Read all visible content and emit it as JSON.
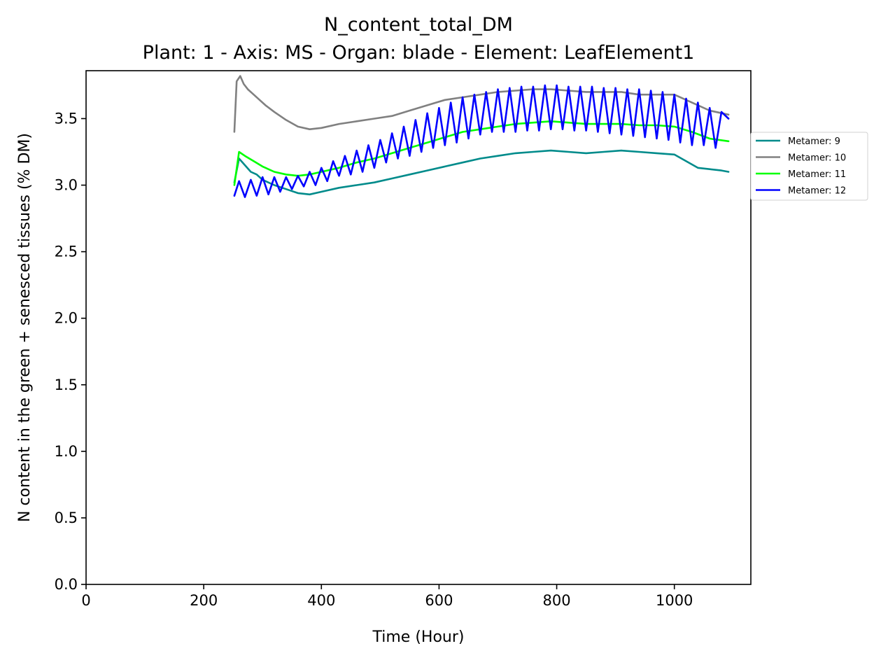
{
  "chart_data": {
    "type": "line",
    "title": "N_content_total_DM",
    "subtitle": "Plant: 1 - Axis: MS - Organ: blade - Element: LeafElement1",
    "xlabel": "Time (Hour)",
    "ylabel": "N content in the green + senesced tissues (% DM)",
    "xlim": [
      0,
      1130
    ],
    "ylim": [
      0,
      3.86
    ],
    "xticks": [
      0,
      200,
      400,
      600,
      800,
      1000
    ],
    "xtick_labels": [
      "0",
      "200",
      "400",
      "600",
      "800",
      "1000"
    ],
    "yticks": [
      0,
      0.5,
      1.0,
      1.5,
      2.0,
      2.5,
      3.0,
      3.5
    ],
    "ytick_labels": [
      "0.0",
      "0.5",
      "1.0",
      "1.5",
      "2.0",
      "2.5",
      "3.0",
      "3.5"
    ],
    "grid": false,
    "legend_position": "outside right",
    "series": [
      {
        "name": "Metamer: 9",
        "color": "#008b8b",
        "x": [
          252,
          260,
          270,
          280,
          290,
          300,
          320,
          340,
          360,
          380,
          400,
          430,
          460,
          490,
          520,
          550,
          580,
          610,
          640,
          670,
          700,
          730,
          760,
          790,
          820,
          850,
          880,
          910,
          940,
          970,
          1000,
          1020,
          1040,
          1060,
          1080,
          1092
        ],
        "y": [
          3.02,
          3.2,
          3.15,
          3.1,
          3.08,
          3.04,
          3.0,
          2.97,
          2.94,
          2.93,
          2.95,
          2.98,
          3.0,
          3.02,
          3.05,
          3.08,
          3.11,
          3.14,
          3.17,
          3.2,
          3.22,
          3.24,
          3.25,
          3.26,
          3.25,
          3.24,
          3.25,
          3.26,
          3.25,
          3.24,
          3.23,
          3.18,
          3.13,
          3.12,
          3.11,
          3.1
        ]
      },
      {
        "name": "Metamer: 10",
        "color": "#808080",
        "x": [
          252,
          256,
          262,
          268,
          275,
          285,
          295,
          305,
          320,
          340,
          360,
          380,
          400,
          430,
          460,
          490,
          520,
          550,
          580,
          610,
          640,
          670,
          700,
          730,
          760,
          790,
          820,
          850,
          880,
          910,
          940,
          970,
          1000,
          1030,
          1060,
          1092
        ],
        "y": [
          3.4,
          3.78,
          3.82,
          3.76,
          3.72,
          3.68,
          3.64,
          3.6,
          3.55,
          3.49,
          3.44,
          3.42,
          3.43,
          3.46,
          3.48,
          3.5,
          3.52,
          3.56,
          3.6,
          3.64,
          3.66,
          3.68,
          3.7,
          3.71,
          3.72,
          3.72,
          3.71,
          3.7,
          3.7,
          3.7,
          3.68,
          3.68,
          3.68,
          3.62,
          3.56,
          3.53
        ]
      },
      {
        "name": "Metamer: 11",
        "color": "#00ff00",
        "x": [
          252,
          260,
          270,
          285,
          300,
          320,
          340,
          360,
          380,
          400,
          430,
          460,
          490,
          520,
          550,
          580,
          610,
          640,
          670,
          700,
          730,
          760,
          790,
          820,
          850,
          880,
          910,
          940,
          970,
          1000,
          1030,
          1060,
          1092
        ],
        "y": [
          3.0,
          3.25,
          3.22,
          3.18,
          3.14,
          3.1,
          3.08,
          3.07,
          3.08,
          3.1,
          3.13,
          3.17,
          3.2,
          3.24,
          3.28,
          3.32,
          3.36,
          3.4,
          3.42,
          3.44,
          3.46,
          3.47,
          3.48,
          3.47,
          3.46,
          3.46,
          3.46,
          3.45,
          3.45,
          3.44,
          3.4,
          3.35,
          3.33
        ]
      },
      {
        "name": "Metamer: 12",
        "color": "#0000ff",
        "x": [
          252,
          260,
          270,
          280,
          290,
          300,
          310,
          320,
          330,
          340,
          350,
          360,
          370,
          380,
          390,
          400,
          410,
          420,
          430,
          440,
          450,
          460,
          470,
          480,
          490,
          500,
          510,
          520,
          530,
          540,
          550,
          560,
          570,
          580,
          590,
          600,
          610,
          620,
          630,
          640,
          650,
          660,
          670,
          680,
          690,
          700,
          710,
          720,
          730,
          740,
          750,
          760,
          770,
          780,
          790,
          800,
          810,
          820,
          830,
          840,
          850,
          860,
          870,
          880,
          890,
          900,
          910,
          920,
          930,
          940,
          950,
          960,
          970,
          980,
          990,
          1000,
          1010,
          1020,
          1030,
          1040,
          1050,
          1060,
          1070,
          1080,
          1092
        ],
        "y": [
          2.92,
          3.03,
          2.91,
          3.04,
          2.92,
          3.06,
          2.93,
          3.06,
          2.95,
          3.06,
          2.97,
          3.07,
          2.99,
          3.1,
          3.0,
          3.13,
          3.03,
          3.18,
          3.07,
          3.22,
          3.08,
          3.26,
          3.1,
          3.3,
          3.13,
          3.34,
          3.17,
          3.39,
          3.2,
          3.44,
          3.22,
          3.49,
          3.25,
          3.54,
          3.28,
          3.58,
          3.3,
          3.62,
          3.32,
          3.66,
          3.35,
          3.68,
          3.38,
          3.7,
          3.4,
          3.72,
          3.4,
          3.73,
          3.4,
          3.74,
          3.41,
          3.74,
          3.41,
          3.75,
          3.42,
          3.75,
          3.42,
          3.74,
          3.41,
          3.74,
          3.41,
          3.74,
          3.4,
          3.73,
          3.39,
          3.73,
          3.38,
          3.72,
          3.37,
          3.72,
          3.36,
          3.71,
          3.35,
          3.7,
          3.34,
          3.68,
          3.32,
          3.65,
          3.3,
          3.62,
          3.3,
          3.58,
          3.28,
          3.55,
          3.5
        ]
      }
    ]
  }
}
